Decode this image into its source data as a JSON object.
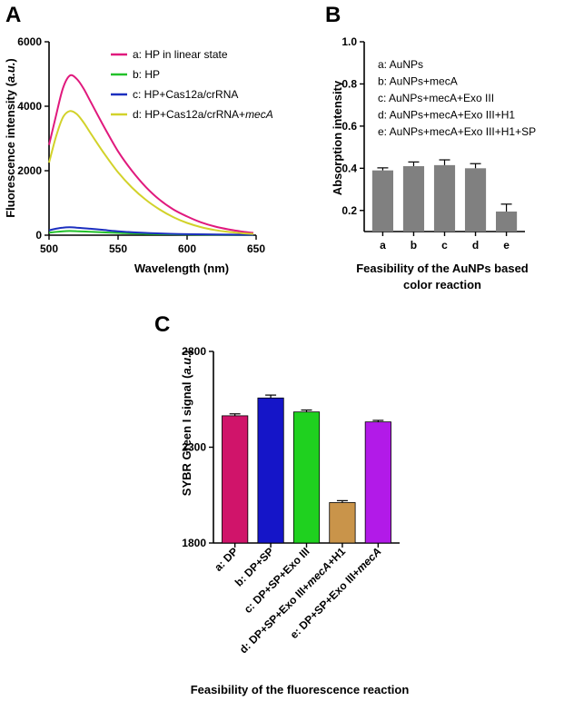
{
  "chart_data": [
    {
      "panel": "A",
      "type": "line",
      "xlabel": "Wavelength (nm)",
      "ylabel": "Fluorescence intensity (a.u.)",
      "xlim": [
        500,
        650
      ],
      "ylim": [
        0,
        6000
      ],
      "xticks": [
        500,
        550,
        600,
        650
      ],
      "yticks": [
        0,
        2000,
        4000,
        6000
      ],
      "legend_position": "top-right",
      "series": [
        {
          "name": "a: HP in linear state",
          "color": "#e0197d",
          "peak_x": 515,
          "values": [
            [
              500,
              2800
            ],
            [
              505,
              3700
            ],
            [
              510,
              4550
            ],
            [
              515,
              4950
            ],
            [
              520,
              4850
            ],
            [
              525,
              4550
            ],
            [
              530,
              4150
            ],
            [
              540,
              3350
            ],
            [
              550,
              2600
            ],
            [
              560,
              2000
            ],
            [
              570,
              1500
            ],
            [
              580,
              1100
            ],
            [
              590,
              800
            ],
            [
              600,
              580
            ],
            [
              610,
              400
            ],
            [
              620,
              270
            ],
            [
              630,
              180
            ],
            [
              640,
              110
            ],
            [
              648,
              70
            ]
          ]
        },
        {
          "name": "b: HP",
          "color": "#22c12a",
          "peak_x": 515,
          "values": [
            [
              500,
              80
            ],
            [
              510,
              120
            ],
            [
              515,
              130
            ],
            [
              520,
              125
            ],
            [
              530,
              105
            ],
            [
              550,
              70
            ],
            [
              570,
              40
            ],
            [
              600,
              20
            ],
            [
              648,
              5
            ]
          ]
        },
        {
          "name": "c: HP+Cas12a/crRNA",
          "color": "#1b2fbf",
          "peak_x": 515,
          "values": [
            [
              500,
              150
            ],
            [
              505,
              200
            ],
            [
              510,
              235
            ],
            [
              515,
              245
            ],
            [
              520,
              235
            ],
            [
              530,
              200
            ],
            [
              540,
              160
            ],
            [
              550,
              120
            ],
            [
              570,
              70
            ],
            [
              600,
              30
            ],
            [
              648,
              10
            ]
          ]
        },
        {
          "name": "d: HP+Cas12a/crRNA+",
          "name_italic": "mecA",
          "color": "#d2d22a",
          "peak_x": 515,
          "values": [
            [
              500,
              2250
            ],
            [
              505,
              3050
            ],
            [
              510,
              3650
            ],
            [
              515,
              3850
            ],
            [
              520,
              3760
            ],
            [
              525,
              3500
            ],
            [
              530,
              3170
            ],
            [
              540,
              2530
            ],
            [
              550,
              1950
            ],
            [
              560,
              1480
            ],
            [
              570,
              1100
            ],
            [
              580,
              800
            ],
            [
              590,
              560
            ],
            [
              600,
              380
            ],
            [
              610,
              250
            ],
            [
              620,
              160
            ],
            [
              630,
              100
            ],
            [
              640,
              60
            ],
            [
              648,
              40
            ]
          ]
        }
      ]
    },
    {
      "panel": "B",
      "type": "bar",
      "xlabel": "Feasibility of the AuNPs based",
      "xlabel2": "color reaction",
      "ylabel": "Absorption intensity",
      "ylim": [
        0.1,
        1.0
      ],
      "yticks": [
        0.2,
        0.4,
        0.6,
        0.8,
        1.0
      ],
      "ytick_labels": [
        "0.2",
        "0.4",
        "0.6",
        "0.8",
        "1.0"
      ],
      "categories": [
        "a",
        "b",
        "c",
        "d",
        "e"
      ],
      "values": [
        0.39,
        0.41,
        0.415,
        0.4,
        0.195
      ],
      "errors": [
        0.012,
        0.02,
        0.025,
        0.022,
        0.035
      ],
      "bar_color": "#808080",
      "legend_position": "top-left",
      "legend": [
        "a: AuNPs",
        "b: AuNPs+mecA",
        "c: AuNPs+mecA+Exo III",
        "d: AuNPs+mecA+Exo III+H1",
        "e: AuNPs+mecA+Exo III+H1+SP"
      ]
    },
    {
      "panel": "C",
      "type": "bar",
      "xlabel": "Feasibility of the fluorescence reaction",
      "ylabel": "SYBR Green I signal (a.u.)",
      "ylim": [
        1800,
        2800
      ],
      "yticks": [
        1800,
        2300,
        2800
      ],
      "categories": [
        {
          "text": "a: DP",
          "italic": "",
          "after": ""
        },
        {
          "text": "b: DP+SP",
          "italic": "",
          "after": ""
        },
        {
          "text": "c: DP+SP+Exo III",
          "italic": "",
          "after": ""
        },
        {
          "text": "d: DP+SP+Exo III+",
          "italic": "mecA",
          "after": "+H1"
        },
        {
          "text": "e: DP+SP+Exo III+",
          "italic": "mecA",
          "after": ""
        }
      ],
      "values": [
        2464,
        2557,
        2484,
        2011,
        2432
      ],
      "errors": [
        10,
        15,
        10,
        10,
        8
      ],
      "colors": [
        "#d0146a",
        "#1515c8",
        "#1fd11f",
        "#c9944a",
        "#b21ae8"
      ]
    }
  ]
}
